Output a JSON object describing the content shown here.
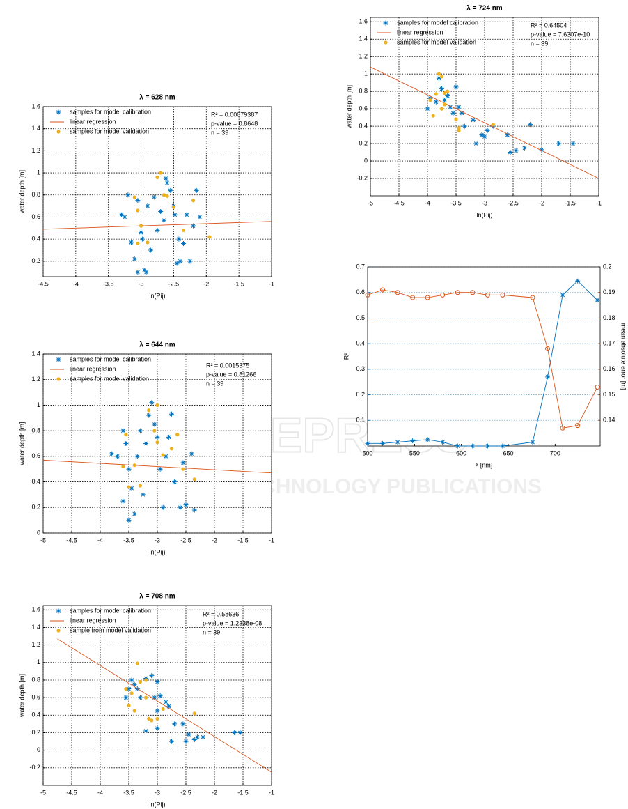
{
  "watermark": [
    "SCITEPRESS",
    "SCIENCE AND TECHNOLOGY PUBLICATIONS"
  ],
  "chart_data": [
    {
      "type": "scatter",
      "title": "λ = 628 nm",
      "x_label": "ln(Pij)",
      "y_label": "water depth [m]",
      "annotations": [
        "R² = 0.00079387",
        "p-value = 0.8648",
        "n = 39"
      ],
      "xlim": [
        -4.5,
        -1
      ],
      "xticks": [
        -4.5,
        -4,
        -3.5,
        -3,
        -2.5,
        -2,
        -1.5,
        -1
      ],
      "ylim": [
        0.06,
        1.6
      ],
      "yticks": [
        0.2,
        0.4,
        0.6,
        0.8,
        1,
        1.2,
        1.4,
        1.6
      ],
      "grid": true,
      "series": [
        {
          "name": "samples for model calibration",
          "color": "#0072bd",
          "marker": "plus",
          "x": [
            -3.3,
            -3.25,
            -3.2,
            -3.15,
            -3.1,
            -3.05,
            -3.05,
            -3.0,
            -2.98,
            -2.95,
            -2.92,
            -2.9,
            -2.85,
            -2.8,
            -2.75,
            -2.7,
            -2.65,
            -2.62,
            -2.6,
            -2.55,
            -2.5,
            -2.48,
            -2.45,
            -2.42,
            -2.4,
            -2.35,
            -2.3,
            -2.25,
            -2.2,
            -2.15,
            -2.1
          ],
          "values": [
            0.62,
            0.6,
            0.8,
            0.37,
            0.22,
            0.75,
            0.1,
            0.46,
            0.4,
            0.12,
            0.1,
            0.7,
            0.3,
            0.78,
            0.48,
            0.65,
            0.57,
            0.95,
            0.91,
            0.84,
            0.7,
            0.62,
            0.18,
            0.4,
            0.2,
            0.36,
            0.62,
            0.2,
            0.52,
            0.84,
            0.6
          ]
        },
        {
          "name": "linear regression",
          "color": "#d95319",
          "marker": "line",
          "x": [
            -4.5,
            -1
          ],
          "values": [
            0.49,
            0.56
          ]
        },
        {
          "name": "samples for model validation",
          "color": "#edb120",
          "marker": "circle",
          "x": [
            -3.1,
            -3.05,
            -3.05,
            -3.0,
            -2.9,
            -2.75,
            -2.7,
            -2.65,
            -2.6,
            -2.5,
            -2.35,
            -2.2,
            -1.95
          ],
          "values": [
            0.78,
            0.66,
            0.36,
            0.52,
            0.37,
            0.96,
            1.0,
            0.8,
            0.79,
            0.69,
            0.48,
            0.75,
            0.42
          ]
        }
      ]
    },
    {
      "type": "scatter",
      "title": "λ = 644 nm",
      "x_label": "ln(Pij)",
      "y_label": "water depth [m]",
      "annotations": [
        "R² = 0.0015375",
        "p-value = 0.81266",
        "n = 39"
      ],
      "xlim": [
        -5,
        -1
      ],
      "xticks": [
        -5,
        -4.5,
        -4,
        -3.5,
        -3,
        -2.5,
        -2,
        -1.5,
        -1
      ],
      "ylim": [
        0,
        1.4
      ],
      "yticks": [
        0,
        0.2,
        0.4,
        0.6,
        0.8,
        1,
        1.2,
        1.4
      ],
      "grid": true,
      "series": [
        {
          "name": "samples for model calibration",
          "color": "#0072bd",
          "marker": "plus",
          "x": [
            -3.8,
            -3.7,
            -3.6,
            -3.6,
            -3.55,
            -3.5,
            -3.5,
            -3.45,
            -3.4,
            -3.35,
            -3.3,
            -3.25,
            -3.2,
            -3.15,
            -3.1,
            -3.05,
            -3.0,
            -2.95,
            -2.9,
            -2.85,
            -2.8,
            -2.75,
            -2.7,
            -2.6,
            -2.55,
            -2.5,
            -2.4,
            -2.35
          ],
          "values": [
            0.62,
            0.6,
            0.8,
            0.25,
            0.7,
            0.1,
            0.5,
            0.35,
            0.15,
            0.6,
            0.8,
            0.3,
            0.7,
            0.92,
            1.02,
            0.85,
            0.75,
            0.5,
            0.2,
            0.6,
            0.75,
            0.93,
            0.4,
            0.2,
            0.55,
            0.22,
            0.62,
            0.18
          ]
        },
        {
          "name": "linear regression",
          "color": "#d95319",
          "marker": "line",
          "x": [
            -5,
            -1
          ],
          "values": [
            0.57,
            0.47
          ]
        },
        {
          "name": "samples for model validation",
          "color": "#edb120",
          "marker": "circle",
          "x": [
            -3.6,
            -3.55,
            -3.5,
            -3.4,
            -3.3,
            -3.15,
            -3.05,
            -3.0,
            -3.0,
            -2.9,
            -2.75,
            -2.65,
            -2.55,
            -2.35
          ],
          "values": [
            0.52,
            0.77,
            0.36,
            0.53,
            0.37,
            0.96,
            0.8,
            1.0,
            0.71,
            0.61,
            0.66,
            0.77,
            0.5,
            0.42
          ]
        }
      ]
    },
    {
      "type": "scatter",
      "title": "λ = 708 nm",
      "x_label": "ln(Pij)",
      "y_label": "water depth [m]",
      "annotations": [
        "R² = 0.58636",
        "p-value = 1.2338e-08",
        "n = 39"
      ],
      "xlim": [
        -5,
        -1
      ],
      "xticks": [
        -5,
        -4.5,
        -4,
        -3.5,
        -3,
        -2.5,
        -2,
        -1.5,
        -1
      ],
      "ylim": [
        -0.4,
        1.65
      ],
      "yticks": [
        -0.2,
        0,
        0.2,
        0.4,
        0.6,
        0.8,
        1,
        1.2,
        1.4,
        1.6
      ],
      "grid": true,
      "series": [
        {
          "name": "samples for model calibration",
          "color": "#0072bd",
          "marker": "plus",
          "x": [
            -3.55,
            -3.5,
            -3.45,
            -3.4,
            -3.35,
            -3.3,
            -3.2,
            -3.2,
            -3.1,
            -3.05,
            -3.0,
            -3.0,
            -3.0,
            -2.95,
            -2.85,
            -2.8,
            -2.75,
            -2.7,
            -2.55,
            -2.5,
            -2.45,
            -2.35,
            -2.3,
            -2.2,
            -1.65,
            -1.55
          ],
          "values": [
            0.6,
            0.7,
            0.8,
            0.75,
            0.7,
            0.6,
            0.82,
            0.22,
            0.85,
            0.6,
            0.78,
            0.45,
            0.25,
            0.62,
            0.55,
            0.5,
            0.1,
            0.3,
            0.3,
            0.1,
            0.18,
            0.12,
            0.15,
            0.15,
            0.2,
            0.2
          ]
        },
        {
          "name": "linear regression",
          "color": "#d95319",
          "marker": "line",
          "x": [
            -4.75,
            -1
          ],
          "values": [
            1.27,
            -0.25
          ]
        },
        {
          "name": "sample from model validation",
          "color": "#edb120",
          "marker": "circle",
          "x": [
            -3.55,
            -3.5,
            -3.45,
            -3.4,
            -3.35,
            -3.3,
            -3.2,
            -3.2,
            -3.15,
            -3.1,
            -3.0,
            -2.9,
            -2.35
          ],
          "values": [
            0.7,
            0.51,
            0.65,
            0.45,
            0.99,
            0.78,
            0.8,
            0.6,
            0.36,
            0.34,
            0.36,
            0.47,
            0.42
          ]
        }
      ]
    },
    {
      "type": "scatter",
      "title": "λ = 724 nm",
      "x_label": "ln(Pij)",
      "y_label": "water depth [m]",
      "annotations": [
        "R² = 0.64504",
        "p-value = 7.6307e-10",
        "n = 39"
      ],
      "xlim": [
        -5,
        -1
      ],
      "xticks": [
        -5,
        -4.5,
        -4,
        -3.5,
        -3,
        -2.5,
        -2,
        -1.5,
        -1
      ],
      "ylim": [
        -0.4,
        1.65
      ],
      "yticks": [
        -0.2,
        0,
        0.2,
        0.4,
        0.6,
        0.8,
        1,
        1.2,
        1.4,
        1.6
      ],
      "grid": true,
      "series": [
        {
          "name": "samples for model calibration",
          "color": "#0072bd",
          "marker": "plus",
          "x": [
            -4,
            -3.95,
            -3.85,
            -3.8,
            -3.75,
            -3.7,
            -3.65,
            -3.6,
            -3.55,
            -3.5,
            -3.45,
            -3.4,
            -3.35,
            -3.2,
            -3.15,
            -3.05,
            -3.0,
            -2.95,
            -2.85,
            -2.6,
            -2.55,
            -2.45,
            -2.3,
            -2.2,
            -2.0,
            -1.7,
            -1.45
          ],
          "values": [
            0.6,
            0.72,
            0.68,
            0.95,
            0.83,
            0.7,
            0.75,
            0.62,
            0.55,
            0.85,
            0.62,
            0.55,
            0.4,
            0.47,
            0.2,
            0.3,
            0.28,
            0.35,
            0.4,
            0.3,
            0.1,
            0.12,
            0.15,
            0.42,
            0.13,
            0.2,
            0.2
          ]
        },
        {
          "name": "linear regression",
          "color": "#d95319",
          "marker": "line",
          "x": [
            -5,
            -1
          ],
          "values": [
            1.08,
            -0.2
          ]
        },
        {
          "name": "samples for model validation",
          "color": "#edb120",
          "marker": "circle",
          "x": [
            -3.95,
            -3.9,
            -3.85,
            -3.8,
            -3.75,
            -3.75,
            -3.7,
            -3.7,
            -3.65,
            -3.5,
            -3.45,
            -3.45,
            -2.85
          ],
          "values": [
            0.7,
            0.52,
            0.77,
            1.0,
            0.97,
            0.6,
            0.78,
            0.65,
            0.8,
            0.48,
            0.35,
            0.38,
            0.42
          ]
        }
      ]
    },
    {
      "type": "line",
      "x_label": "λ [nm]",
      "y_label": "R²",
      "y2_label": "mean absolute error [m]",
      "y_axis_color": "#0072bd",
      "y2_axis_color": "#d95319",
      "x": [
        500,
        516,
        532,
        548,
        564,
        580,
        596,
        612,
        628,
        644,
        676,
        692,
        708,
        724,
        745
      ],
      "xlim": [
        500,
        748
      ],
      "xticks": [
        500,
        550,
        600,
        650,
        700
      ],
      "ylim": [
        0,
        0.7
      ],
      "yticks": [
        0.1,
        0.2,
        0.3,
        0.4,
        0.5,
        0.6,
        0.7
      ],
      "y2lim": [
        0.13,
        0.2
      ],
      "y2ticks": [
        0.14,
        0.15,
        0.16,
        0.17,
        0.18,
        0.19,
        0.2
      ],
      "grid": true,
      "series": [
        {
          "color": "#0072bd",
          "marker": "plus",
          "values": [
            0.01,
            0.01,
            0.015,
            0.02,
            0.025,
            0.015,
            0.0,
            0.0,
            0.0,
            0.0,
            0.015,
            0.27,
            0.59,
            0.645,
            0.57
          ]
        },
        {
          "color": "#d95319",
          "marker": "open-circle",
          "axis": "y2",
          "values": [
            0.189,
            0.191,
            0.19,
            0.188,
            0.188,
            0.189,
            0.19,
            0.19,
            0.189,
            0.189,
            0.188,
            0.168,
            0.137,
            0.138,
            0.153
          ]
        }
      ]
    }
  ]
}
